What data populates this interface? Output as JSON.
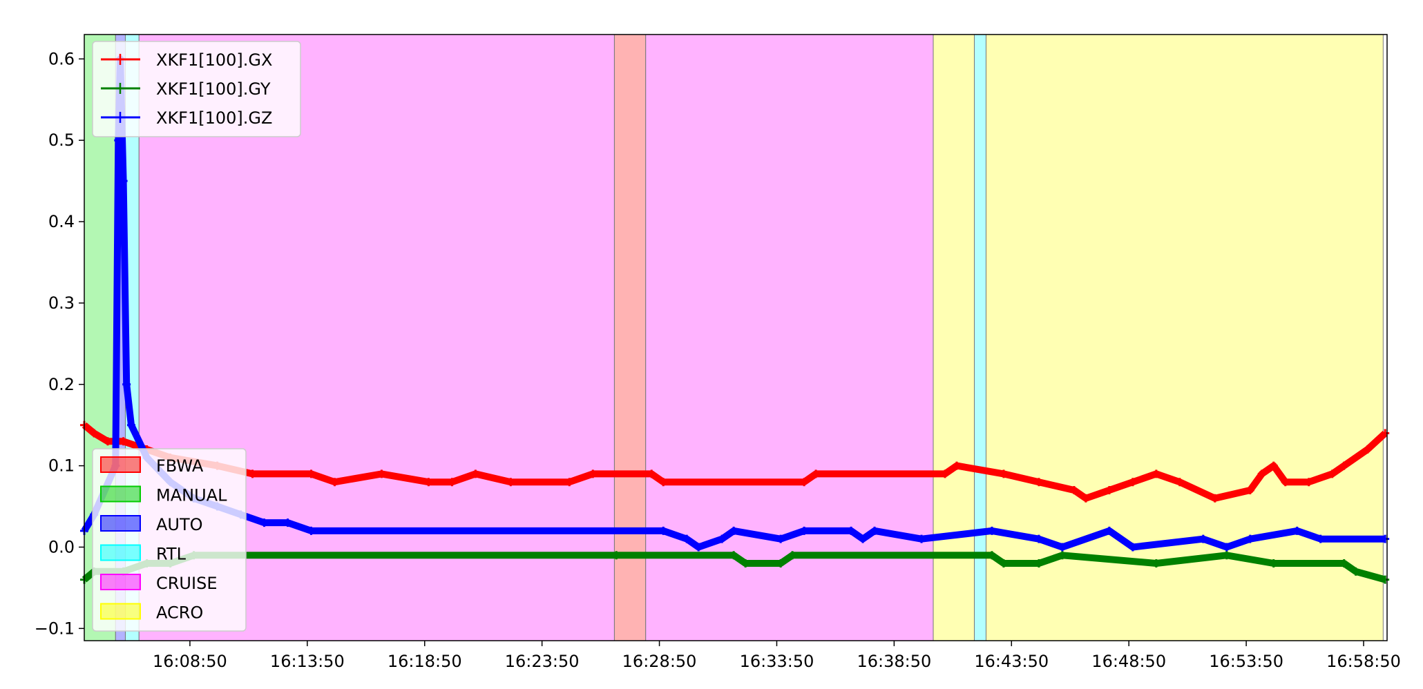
{
  "chart_data": {
    "type": "line",
    "title": "",
    "xlabel": "",
    "ylabel": "",
    "x_unit": "time of day (HH:MM:SS)",
    "xlim": [
      "16:04:20",
      "16:59:50"
    ],
    "ylim": [
      -0.115,
      0.63
    ],
    "x_ticks": [
      "16:08:50",
      "16:13:50",
      "16:18:50",
      "16:23:50",
      "16:28:50",
      "16:33:50",
      "16:38:50",
      "16:43:50",
      "16:48:50",
      "16:53:50",
      "16:58:50"
    ],
    "y_ticks": [
      "−0.1",
      "0.0",
      "0.1",
      "0.2",
      "0.3",
      "0.4",
      "0.5",
      "0.6"
    ],
    "grid": false,
    "series": [
      {
        "name": "XKF1[100].GX",
        "color": "#ff0000",
        "points": [
          [
            "16:04:20",
            0.15
          ],
          [
            "16:04:45",
            0.14
          ],
          [
            "16:05:20",
            0.13
          ],
          [
            "16:06:00",
            0.13
          ],
          [
            "16:07:00",
            0.12
          ],
          [
            "16:08:00",
            0.11
          ],
          [
            "16:10:00",
            0.1
          ],
          [
            "16:11:30",
            0.09
          ],
          [
            "16:14:00",
            0.09
          ],
          [
            "16:15:00",
            0.08
          ],
          [
            "16:17:00",
            0.09
          ],
          [
            "16:19:00",
            0.08
          ],
          [
            "16:20:00",
            0.08
          ],
          [
            "16:21:00",
            0.09
          ],
          [
            "16:22:30",
            0.08
          ],
          [
            "16:25:00",
            0.08
          ],
          [
            "16:26:00",
            0.09
          ],
          [
            "16:28:30",
            0.09
          ],
          [
            "16:29:00",
            0.08
          ],
          [
            "16:35:00",
            0.08
          ],
          [
            "16:35:30",
            0.09
          ],
          [
            "16:41:00",
            0.09
          ],
          [
            "16:41:30",
            0.1
          ],
          [
            "16:43:30",
            0.09
          ],
          [
            "16:45:00",
            0.08
          ],
          [
            "16:46:30",
            0.07
          ],
          [
            "16:47:00",
            0.06
          ],
          [
            "16:48:00",
            0.07
          ],
          [
            "16:49:00",
            0.08
          ],
          [
            "16:50:00",
            0.09
          ],
          [
            "16:51:00",
            0.08
          ],
          [
            "16:52:30",
            0.06
          ],
          [
            "16:54:00",
            0.07
          ],
          [
            "16:54:30",
            0.09
          ],
          [
            "16:55:00",
            0.1
          ],
          [
            "16:55:30",
            0.08
          ],
          [
            "16:56:30",
            0.08
          ],
          [
            "16:57:30",
            0.09
          ],
          [
            "16:58:00",
            0.1
          ],
          [
            "16:59:00",
            0.12
          ],
          [
            "16:59:45",
            0.14
          ]
        ]
      },
      {
        "name": "XKF1[100].GY",
        "color": "#008000",
        "points": [
          [
            "16:04:20",
            -0.04
          ],
          [
            "16:04:45",
            -0.03
          ],
          [
            "16:06:00",
            -0.03
          ],
          [
            "16:07:00",
            -0.02
          ],
          [
            "16:08:00",
            -0.02
          ],
          [
            "16:09:00",
            -0.01
          ],
          [
            "16:27:00",
            -0.01
          ],
          [
            "16:32:00",
            -0.01
          ],
          [
            "16:32:30",
            -0.02
          ],
          [
            "16:34:00",
            -0.02
          ],
          [
            "16:34:30",
            -0.01
          ],
          [
            "16:43:00",
            -0.01
          ],
          [
            "16:43:30",
            -0.02
          ],
          [
            "16:45:00",
            -0.02
          ],
          [
            "16:46:00",
            -0.01
          ],
          [
            "16:50:00",
            -0.02
          ],
          [
            "16:53:00",
            -0.01
          ],
          [
            "16:55:00",
            -0.02
          ],
          [
            "16:58:00",
            -0.02
          ],
          [
            "16:58:30",
            -0.03
          ],
          [
            "16:59:45",
            -0.04
          ]
        ]
      },
      {
        "name": "XKF1[100].GZ",
        "color": "#0000ff",
        "points": [
          [
            "16:04:20",
            0.02
          ],
          [
            "16:04:45",
            0.04
          ],
          [
            "16:05:40",
            0.1
          ],
          [
            "16:05:47",
            0.5
          ],
          [
            "16:05:52",
            0.6
          ],
          [
            "16:06:00",
            0.45
          ],
          [
            "16:06:08",
            0.2
          ],
          [
            "16:06:20",
            0.15
          ],
          [
            "16:07:00",
            0.11
          ],
          [
            "16:08:00",
            0.08
          ],
          [
            "16:09:00",
            0.06
          ],
          [
            "16:10:00",
            0.05
          ],
          [
            "16:11:00",
            0.04
          ],
          [
            "16:12:00",
            0.03
          ],
          [
            "16:13:00",
            0.03
          ],
          [
            "16:14:00",
            0.02
          ],
          [
            "16:29:00",
            0.02
          ],
          [
            "16:30:00",
            0.01
          ],
          [
            "16:30:30",
            0.0
          ],
          [
            "16:31:30",
            0.01
          ],
          [
            "16:32:00",
            0.02
          ],
          [
            "16:34:00",
            0.01
          ],
          [
            "16:35:00",
            0.02
          ],
          [
            "16:37:00",
            0.02
          ],
          [
            "16:37:30",
            0.01
          ],
          [
            "16:38:00",
            0.02
          ],
          [
            "16:40:00",
            0.01
          ],
          [
            "16:43:00",
            0.02
          ],
          [
            "16:45:00",
            0.01
          ],
          [
            "16:46:00",
            0.0
          ],
          [
            "16:48:00",
            0.02
          ],
          [
            "16:49:00",
            0.0
          ],
          [
            "16:52:00",
            0.01
          ],
          [
            "16:53:00",
            0.0
          ],
          [
            "16:54:00",
            0.01
          ],
          [
            "16:56:00",
            0.02
          ],
          [
            "16:57:00",
            0.01
          ],
          [
            "16:59:45",
            0.01
          ]
        ]
      }
    ],
    "mode_bands": [
      {
        "mode": "MANUAL",
        "start": "16:04:20",
        "end": "16:05:40"
      },
      {
        "mode": "AUTO",
        "start": "16:05:40",
        "end": "16:06:05"
      },
      {
        "mode": "RTL",
        "start": "16:06:05",
        "end": "16:06:40"
      },
      {
        "mode": "CRUISE",
        "start": "16:06:40",
        "end": "16:26:55"
      },
      {
        "mode": "FBWA",
        "start": "16:26:55",
        "end": "16:28:15"
      },
      {
        "mode": "CRUISE",
        "start": "16:28:15",
        "end": "16:40:30"
      },
      {
        "mode": "ACRO",
        "start": "16:40:30",
        "end": "16:42:15"
      },
      {
        "mode": "RTL",
        "start": "16:42:15",
        "end": "16:42:45"
      },
      {
        "mode": "ACRO",
        "start": "16:42:45",
        "end": "16:59:40"
      }
    ],
    "series_legend": {
      "placement": "upper-left",
      "entries": [
        "XKF1[100].GX",
        "XKF1[100].GY",
        "XKF1[100].GZ"
      ]
    },
    "mode_legend": {
      "placement": "lower-left",
      "entries": [
        {
          "label": "FBWA",
          "color": "#ff0000"
        },
        {
          "label": "MANUAL",
          "color": "#00cc00"
        },
        {
          "label": "AUTO",
          "color": "#0000ff"
        },
        {
          "label": "RTL",
          "color": "#00ffff"
        },
        {
          "label": "CRUISE",
          "color": "#ff00ff"
        },
        {
          "label": "ACRO",
          "color": "#ffff00"
        }
      ]
    }
  },
  "band_colors": {
    "MANUAL": "#b3f7b3",
    "AUTO": "#b3b3ff",
    "RTL": "#b3ffff",
    "CRUISE": "#ffb3ff",
    "FBWA": "#ffb3b3",
    "ACRO": "#ffffb3"
  }
}
